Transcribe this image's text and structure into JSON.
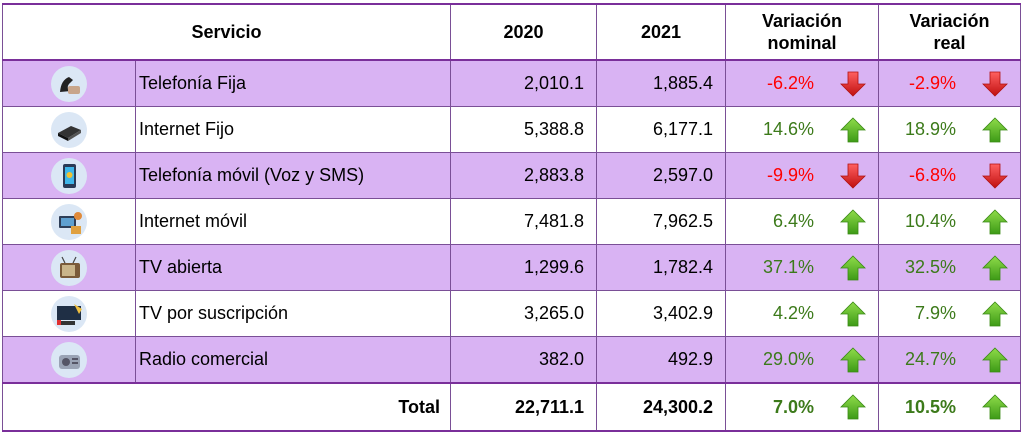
{
  "header": {
    "servicio": "Servicio",
    "y2020": "2020",
    "y2021": "2021",
    "var_nominal": "Variación nominal",
    "var_real": "Variación real"
  },
  "rows": [
    {
      "name": "Telefonía Fija",
      "icon": "landline-phone-icon",
      "v2020": "2,010.1",
      "v2021": "1,885.4",
      "nominal": "-6.2%",
      "nominal_dir": "down",
      "real": "-2.9%",
      "real_dir": "down"
    },
    {
      "name": "Internet Fijo",
      "icon": "modem-router-icon",
      "v2020": "5,388.8",
      "v2021": "6,177.1",
      "nominal": "14.6%",
      "nominal_dir": "up",
      "real": "18.9%",
      "real_dir": "up"
    },
    {
      "name": "Telefonía móvil (Voz y SMS)",
      "icon": "mobile-phone-icon",
      "v2020": "2,883.8",
      "v2021": "2,597.0",
      "nominal": "-9.9%",
      "nominal_dir": "down",
      "real": "-6.8%",
      "real_dir": "down"
    },
    {
      "name": "Internet móvil",
      "icon": "tablet-user-icon",
      "v2020": "7,481.8",
      "v2021": "7,962.5",
      "nominal": "6.4%",
      "nominal_dir": "up",
      "real": "10.4%",
      "real_dir": "up"
    },
    {
      "name": "TV abierta",
      "icon": "retro-tv-icon",
      "v2020": "1,299.6",
      "v2021": "1,782.4",
      "nominal": "37.1%",
      "nominal_dir": "up",
      "real": "32.5%",
      "real_dir": "up"
    },
    {
      "name": "TV por suscripción",
      "icon": "pay-tv-icon",
      "v2020": "3,265.0",
      "v2021": "3,402.9",
      "nominal": "4.2%",
      "nominal_dir": "up",
      "real": "7.9%",
      "real_dir": "up"
    },
    {
      "name": "Radio comercial",
      "icon": "radio-icon",
      "v2020": "382.0",
      "v2021": "492.9",
      "nominal": "29.0%",
      "nominal_dir": "up",
      "real": "24.7%",
      "real_dir": "up"
    }
  ],
  "total": {
    "label": "Total",
    "v2020": "22,711.1",
    "v2021": "24,300.2",
    "nominal": "7.0%",
    "nominal_dir": "up",
    "real": "10.5%",
    "real_dir": "up"
  },
  "colors": {
    "row_highlight": "#d9b3f3",
    "border": "#7a2f9a",
    "negative": "#ff0000",
    "positive": "#3c7a1a",
    "arrow_up": "#4caf1e",
    "arrow_down": "#e02020"
  }
}
